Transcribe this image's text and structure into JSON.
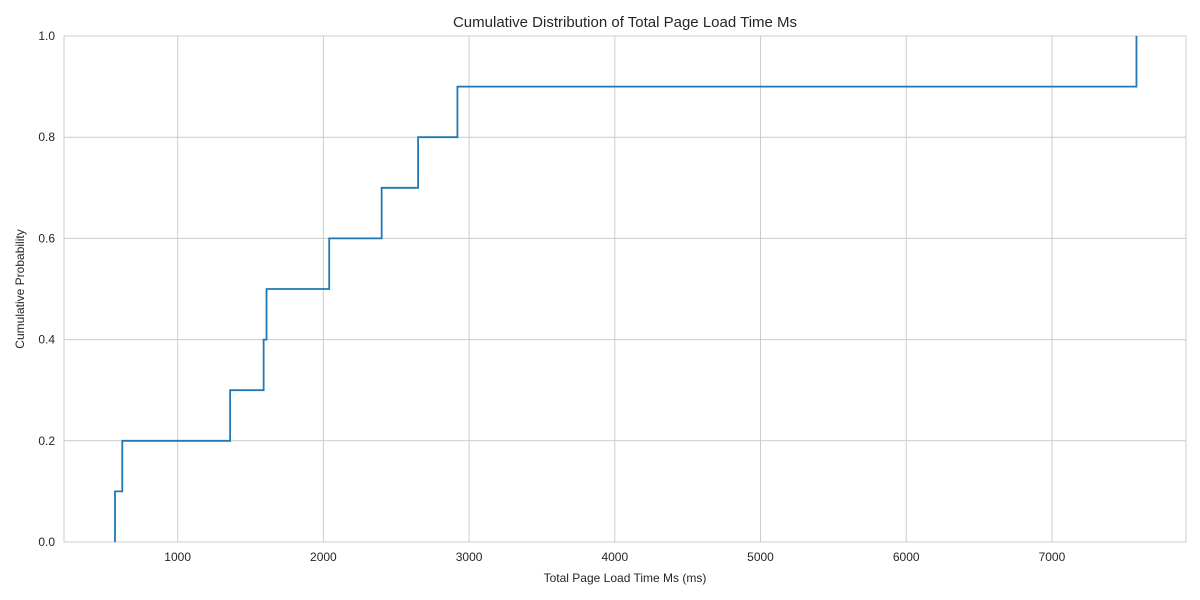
{
  "chart_data": {
    "type": "line",
    "subtype": "ecdf-step",
    "title": "Cumulative Distribution of Total Page Load Time Ms",
    "xlabel": "Total Page Load Time Ms (ms)",
    "ylabel": "Cumulative Probability",
    "xlim": [
      220,
      7920
    ],
    "ylim": [
      0,
      1
    ],
    "xticks": [
      1000,
      2000,
      3000,
      4000,
      5000,
      6000,
      7000
    ],
    "xtick_labels": [
      "1000",
      "2000",
      "3000",
      "4000",
      "5000",
      "6000",
      "7000"
    ],
    "yticks": [
      0.0,
      0.2,
      0.4,
      0.6,
      0.8,
      1.0
    ],
    "ytick_labels": [
      "0.0",
      "0.2",
      "0.4",
      "0.6",
      "0.8",
      "1.0"
    ],
    "grid": true,
    "line_color": "#1f77b4",
    "series": [
      {
        "x": [
          570,
          620,
          1360,
          1590,
          1610,
          2040,
          2400,
          2650,
          2920,
          7580
        ],
        "y": [
          0.1,
          0.2,
          0.3,
          0.4,
          0.5,
          0.6,
          0.7,
          0.8,
          0.9,
          1.0
        ]
      }
    ]
  }
}
